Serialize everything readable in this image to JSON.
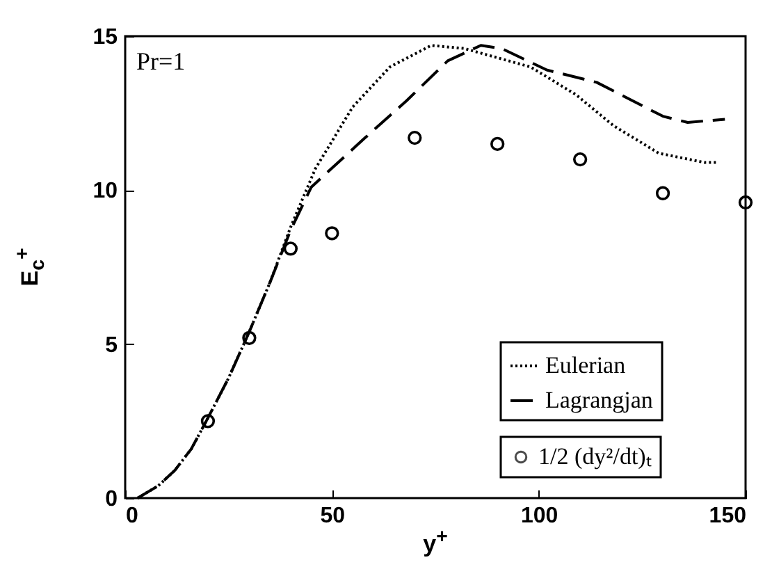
{
  "chart_data": {
    "type": "line",
    "xlabel": "y$^{+}$",
    "ylabel": "E$_{c}$$^{+}$",
    "annotations": [
      "Pr=1"
    ],
    "xlim": [
      0,
      150
    ],
    "ylim": [
      0,
      15
    ],
    "xticks": [
      0,
      50,
      100,
      150
    ],
    "yticks": [
      0,
      5,
      10,
      15
    ],
    "grid": false,
    "legend": "bottom right",
    "series": [
      {
        "name": "Eulerian",
        "line_style": "dotted",
        "color": "#000000",
        "x": [
          3,
          8,
          12,
          16,
          20,
          25,
          30,
          35,
          40,
          46,
          55,
          64,
          74,
          82,
          98,
          109,
          118,
          129,
          140,
          143
        ],
        "values": [
          0,
          0.4,
          0.9,
          1.6,
          2.6,
          3.9,
          5.4,
          7.0,
          8.8,
          10.7,
          12.7,
          14.0,
          14.7,
          14.6,
          14.0,
          13.1,
          12.1,
          11.2,
          10.9,
          10.9
        ]
      },
      {
        "name": "Lagrangjan",
        "line_style": "dashed",
        "color": "#000000",
        "x": [
          3,
          8,
          12,
          16,
          20,
          25,
          30,
          35,
          40,
          45,
          58,
          68,
          78,
          86,
          91,
          102,
          114,
          130,
          136,
          145
        ],
        "values": [
          0,
          0.4,
          0.9,
          1.6,
          2.6,
          3.9,
          5.4,
          7.0,
          8.7,
          10.1,
          11.7,
          12.9,
          14.2,
          14.7,
          14.6,
          13.9,
          13.5,
          12.4,
          12.2,
          12.3
        ]
      },
      {
        "name": "1/2 (dy²/dt)ₜ",
        "type": "scatter",
        "marker": "circle",
        "color": "#000000",
        "x": [
          20,
          30,
          40,
          50,
          70,
          90,
          110,
          130,
          150
        ],
        "values": [
          2.5,
          5.2,
          8.1,
          8.6,
          11.7,
          11.5,
          11.0,
          9.9,
          9.6
        ]
      }
    ]
  }
}
